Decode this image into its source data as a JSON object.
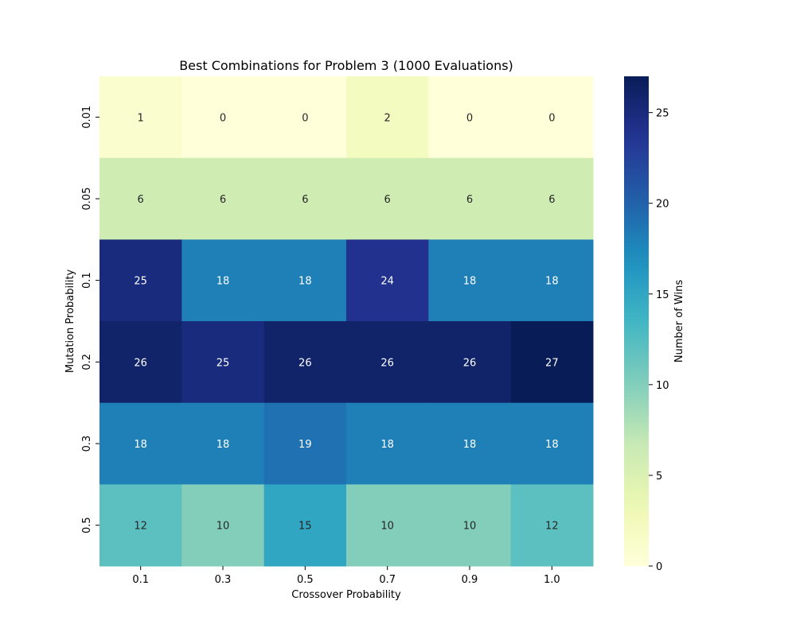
{
  "chart_data": {
    "type": "heatmap",
    "title": "Best Combinations for Problem 3 (1000 Evaluations)",
    "xlabel": "Crossover Probability",
    "ylabel": "Mutation Probability",
    "x_categories": [
      "0.1",
      "0.3",
      "0.5",
      "0.7",
      "0.9",
      "1.0"
    ],
    "y_categories": [
      "0.01",
      "0.05",
      "0.1",
      "0.2",
      "0.3",
      "0.5"
    ],
    "values": [
      [
        1,
        0,
        0,
        2,
        0,
        0
      ],
      [
        6,
        6,
        6,
        6,
        6,
        6
      ],
      [
        25,
        18,
        18,
        24,
        18,
        18
      ],
      [
        26,
        25,
        26,
        26,
        26,
        27
      ],
      [
        18,
        18,
        19,
        18,
        18,
        18
      ],
      [
        12,
        10,
        15,
        10,
        10,
        12
      ]
    ],
    "colorbar": {
      "label": "Number of Wins",
      "range": [
        0,
        27
      ],
      "ticks": [
        0,
        5,
        10,
        15,
        20,
        25
      ],
      "colormap": "YlGnBu"
    }
  }
}
